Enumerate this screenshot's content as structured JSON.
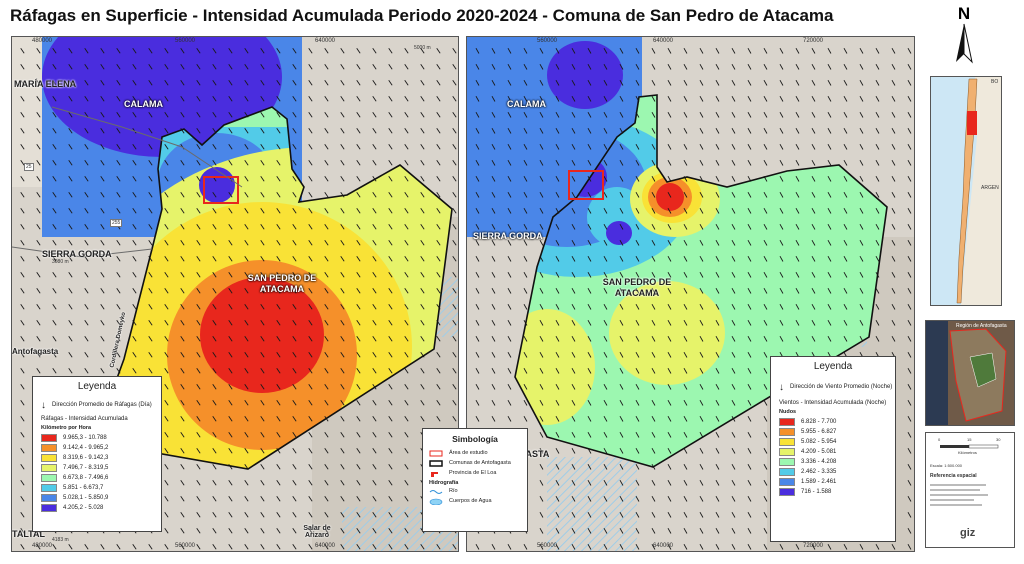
{
  "title": "Ráfagas en Superficie - Intensidad Acumulada Periodo 2020-2024 - Comuna de San Pedro de Atacama",
  "north_arrow": "N",
  "left_map": {
    "top_coords": [
      "480000",
      "560000",
      "640000"
    ],
    "bottom_coords": [
      "480000",
      "560000",
      "640000"
    ],
    "side_coords": [
      "7520000",
      "7440000",
      "7360000",
      "7280000"
    ],
    "place_labels": [
      "MARÍA ELENA",
      "CALAMA",
      "SIERRA GORDA",
      "SAN PEDRO DE ATACAMA",
      "Antofagasta",
      "TALTAL",
      "Salar de Arizaro",
      "Cordillera Domeyko"
    ],
    "elevation_labels": [
      "5000 m",
      "3080 m",
      "4183 m"
    ],
    "road_labels": [
      "25",
      "255"
    ],
    "legend": {
      "title": "Leyenda",
      "arrow_label": "Dirección Promedio de Ráfagas (Día)",
      "variable": "Ráfagas - Intensidad Acumulada",
      "unit": "Kilómetro por Hora",
      "classes": [
        {
          "range": "9.965,3 - 10.788",
          "color": "#e8271d"
        },
        {
          "range": "9.142,4 - 9.965,2",
          "color": "#f5902a"
        },
        {
          "range": "8.319,6 - 9.142,3",
          "color": "#f9e236"
        },
        {
          "range": "7.496,7 - 8.319,5",
          "color": "#e6f36a"
        },
        {
          "range": "6.673,8 - 7.496,6",
          "color": "#9cf7b0"
        },
        {
          "range": "5.851 - 6.673,7",
          "color": "#52cbe8"
        },
        {
          "range": "5.028,1 - 5.850,9",
          "color": "#4a86e8"
        },
        {
          "range": "4.205,2 - 5.028",
          "color": "#4a2dde"
        }
      ]
    }
  },
  "right_map": {
    "top_coords": [
      "560000",
      "640000",
      "720000"
    ],
    "bottom_coords": [
      "560000",
      "640000",
      "720000"
    ],
    "side_coords": [
      "7520000",
      "7440000",
      "7360000",
      "7280000"
    ],
    "place_labels": [
      "CALAMA",
      "SIERRA GORDA",
      "SAN PEDRO DE ATACAMA",
      "FAGASTA"
    ],
    "legend": {
      "title": "Leyenda",
      "arrow_label": "Dirección de Viento Promedio (Noche)",
      "variable": "Vientos - Intensidad Acumulada (Noche)",
      "unit": "Nudos",
      "classes": [
        {
          "range": "6.828 - 7.700",
          "color": "#e8271d"
        },
        {
          "range": "5.955 - 6.827",
          "color": "#f5902a"
        },
        {
          "range": "5.082 - 5.954",
          "color": "#f9e236"
        },
        {
          "range": "4.209 - 5.081",
          "color": "#e6f36a"
        },
        {
          "range": "3.336 - 4.208",
          "color": "#9cf7b0"
        },
        {
          "range": "2.462 - 3.335",
          "color": "#52cbe8"
        },
        {
          "range": "1.589 - 2.461",
          "color": "#4a86e8"
        },
        {
          "range": "716 - 1.588",
          "color": "#4a2dde"
        }
      ]
    }
  },
  "symbology": {
    "title": "Simbología",
    "items": [
      "Área de estudio",
      "Comunas de Antofagasta",
      "Provincia de El Loa"
    ],
    "hydro_title": "Hidrografía",
    "hydro_items": [
      "Río",
      "Cuerpos de Agua"
    ]
  },
  "inset_labels": [
    "BO",
    "ARGEN",
    "Región de Antofagasta"
  ],
  "info_box": {
    "scale_ticks": [
      "0",
      "15",
      "30"
    ],
    "scale_unit": "Kilómetros",
    "scale_text": "Escala: 1:500.000",
    "reference_title": "Referencia espacial",
    "org": "giz"
  }
}
